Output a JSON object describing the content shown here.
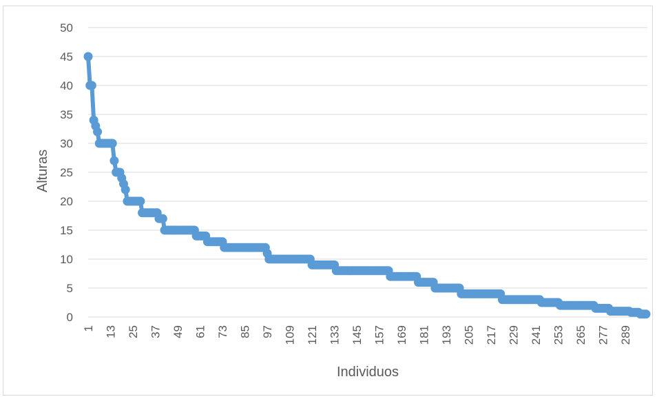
{
  "chart_data": {
    "type": "line",
    "xlabel": "Individuos",
    "ylabel": "Alturas",
    "ylim": [
      0,
      50
    ],
    "yticks": [
      0,
      5,
      10,
      15,
      20,
      25,
      30,
      35,
      40,
      45,
      50
    ],
    "xlim": [
      1,
      300
    ],
    "xticks": [
      1,
      13,
      25,
      37,
      49,
      61,
      73,
      85,
      97,
      109,
      121,
      133,
      145,
      157,
      169,
      181,
      193,
      205,
      217,
      229,
      241,
      253,
      265,
      277,
      289
    ],
    "grid": true,
    "legend": "none",
    "line_color": "#5b9bd5",
    "steps": [
      [
        1,
        1,
        45
      ],
      [
        2,
        3,
        40
      ],
      [
        4,
        4,
        34
      ],
      [
        5,
        5,
        33
      ],
      [
        6,
        6,
        32
      ],
      [
        7,
        14,
        30
      ],
      [
        15,
        15,
        27
      ],
      [
        16,
        18,
        25
      ],
      [
        19,
        19,
        24
      ],
      [
        20,
        20,
        23
      ],
      [
        21,
        21,
        22
      ],
      [
        22,
        29,
        20
      ],
      [
        30,
        38,
        18
      ],
      [
        39,
        41,
        17
      ],
      [
        42,
        58,
        15
      ],
      [
        59,
        64,
        14
      ],
      [
        65,
        73,
        13
      ],
      [
        74,
        96,
        12
      ],
      [
        97,
        97,
        11
      ],
      [
        98,
        120,
        10
      ],
      [
        121,
        133,
        9
      ],
      [
        134,
        162,
        8
      ],
      [
        163,
        177,
        7
      ],
      [
        178,
        186,
        6
      ],
      [
        187,
        200,
        5
      ],
      [
        201,
        222,
        4
      ],
      [
        223,
        243,
        3
      ],
      [
        244,
        253,
        2.5
      ],
      [
        254,
        272,
        2
      ],
      [
        273,
        280,
        1.5
      ],
      [
        281,
        291,
        1
      ],
      [
        292,
        296,
        0.8
      ],
      [
        297,
        300,
        0.5
      ]
    ]
  }
}
